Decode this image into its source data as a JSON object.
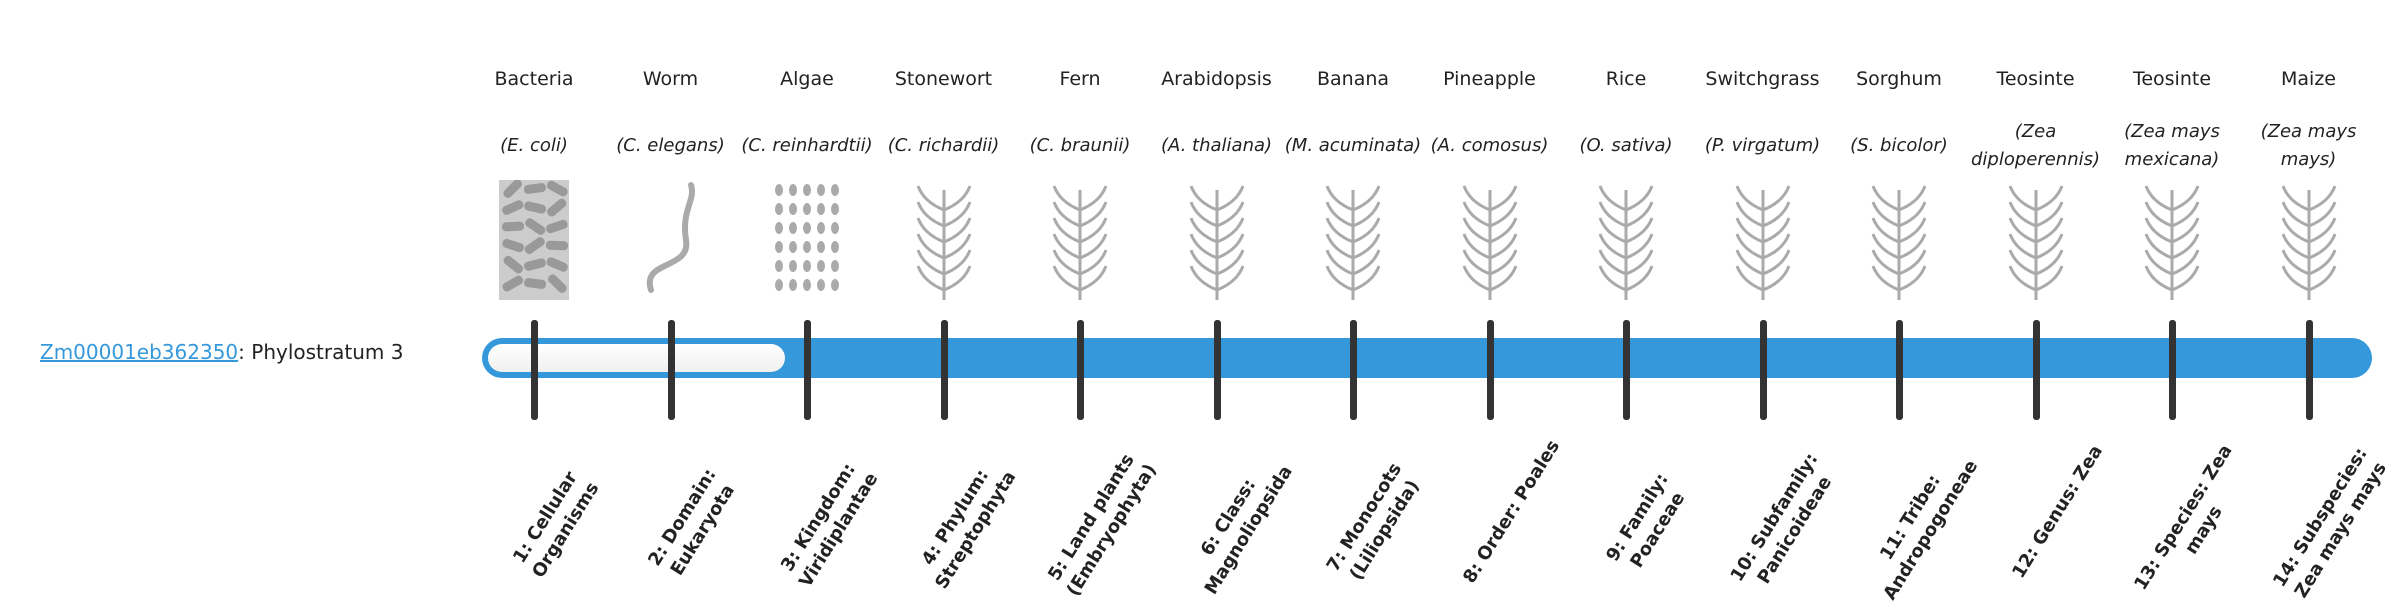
{
  "gene": {
    "id": "Zm00001eb362350",
    "suffix": ": Phylostratum 3"
  },
  "phylostratum": 3,
  "bar_color": "#3498db",
  "organisms": [
    {
      "common": "Bacteria",
      "species": "(E. coli)",
      "icon": "bacteria-icon"
    },
    {
      "common": "Worm",
      "species": "(C. elegans)",
      "icon": "worm-icon"
    },
    {
      "common": "Algae",
      "species": "(C. reinhardtii)",
      "icon": "algae-icon"
    },
    {
      "common": "Stonewort",
      "species": "(C. richardii)",
      "icon": "stonewort-icon"
    },
    {
      "common": "Fern",
      "species": "(C. braunii)",
      "icon": "fern-icon"
    },
    {
      "common": "Arabidopsis",
      "species": "(A. thaliana)",
      "icon": "arabidopsis-icon"
    },
    {
      "common": "Banana",
      "species": "(M. acuminata)",
      "icon": "banana-icon"
    },
    {
      "common": "Pineapple",
      "species": "(A. comosus)",
      "icon": "pineapple-icon"
    },
    {
      "common": "Rice",
      "species": "(O. sativa)",
      "icon": "rice-icon"
    },
    {
      "common": "Switchgrass",
      "species": "(P. virgatum)",
      "icon": "switchgrass-icon"
    },
    {
      "common": "Sorghum",
      "species": "(S. bicolor)",
      "icon": "sorghum-icon"
    },
    {
      "common": "Teosinte",
      "species": "(Zea diploperennis)",
      "icon": "teosinte-icon"
    },
    {
      "common": "Teosinte",
      "species": "(Zea mays mexicana)",
      "icon": "teosinte-icon"
    },
    {
      "common": "Maize",
      "species": "(Zea mays mays)",
      "icon": "maize-icon"
    }
  ],
  "strata": [
    "1: Cellular Organisms",
    "2: Domain: Eukaryota",
    "3: Kingdom: Viridiplantae",
    "4: Phylum: Streptophyta",
    "5: Land plants (Embryophyta)",
    "6: Class: Magnoliopsida",
    "7: Monocots (Liliopsida)",
    "8: Order: Poales",
    "9: Family: Poaceae",
    "10: Subfamily: Panicoideae",
    "11: Tribe: Andropogoneae",
    "12: Genus: Zea",
    "13: Species: Zea mays",
    "14: Subspecies: Zea mays mays"
  ]
}
